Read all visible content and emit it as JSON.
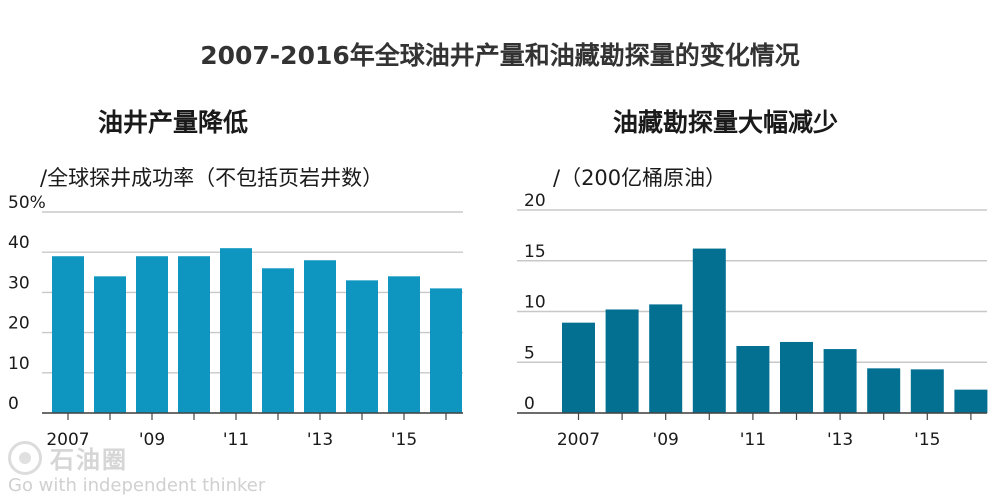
{
  "title": "2007-2016年全球油井产量和油藏勘探量的变化情况",
  "watermark": {
    "name": "石油圈",
    "slogan": "Go with independent thinker"
  },
  "chart_data": [
    {
      "type": "bar",
      "title": "油井产量降低",
      "unit_label": "/全球探井成功率（不包括页岩井数）",
      "categories": [
        "2007",
        "2008",
        "2009",
        "2010",
        "2011",
        "2012",
        "2013",
        "2014",
        "2015",
        "2016"
      ],
      "values": [
        39,
        34,
        39,
        39,
        41,
        36,
        38,
        33,
        34,
        31
      ],
      "ylim": [
        0,
        50
      ],
      "yticks": [
        0,
        10,
        20,
        30,
        40,
        50
      ],
      "ytick_labels": [
        "0",
        "10",
        "20",
        "30",
        "40",
        "50%"
      ],
      "xtick_labels": [
        {
          "index": 0,
          "label": "2007"
        },
        {
          "index": 2,
          "label": "'09"
        },
        {
          "index": 4,
          "label": "'11"
        },
        {
          "index": 6,
          "label": "'13"
        },
        {
          "index": 8,
          "label": "'15"
        }
      ],
      "color": "#0f96c0",
      "grid": true
    },
    {
      "type": "bar",
      "title": "油藏勘探量大幅减少",
      "unit_label": "/（200亿桶原油）",
      "categories": [
        "2007",
        "2008",
        "2009",
        "2010",
        "2011",
        "2012",
        "2013",
        "2014",
        "2015",
        "2016"
      ],
      "values": [
        8.9,
        10.2,
        10.7,
        16.2,
        6.6,
        7.0,
        6.3,
        4.4,
        4.3,
        2.3
      ],
      "ylim": [
        0,
        20
      ],
      "yticks": [
        0,
        5,
        10,
        15,
        20
      ],
      "ytick_labels": [
        "0",
        "5",
        "10",
        "15",
        "20"
      ],
      "xtick_labels": [
        {
          "index": 0,
          "label": "2007"
        },
        {
          "index": 2,
          "label": "'09"
        },
        {
          "index": 4,
          "label": "'11"
        },
        {
          "index": 6,
          "label": "'13"
        },
        {
          "index": 8,
          "label": "'15"
        }
      ],
      "color": "#037092",
      "grid": true
    }
  ]
}
